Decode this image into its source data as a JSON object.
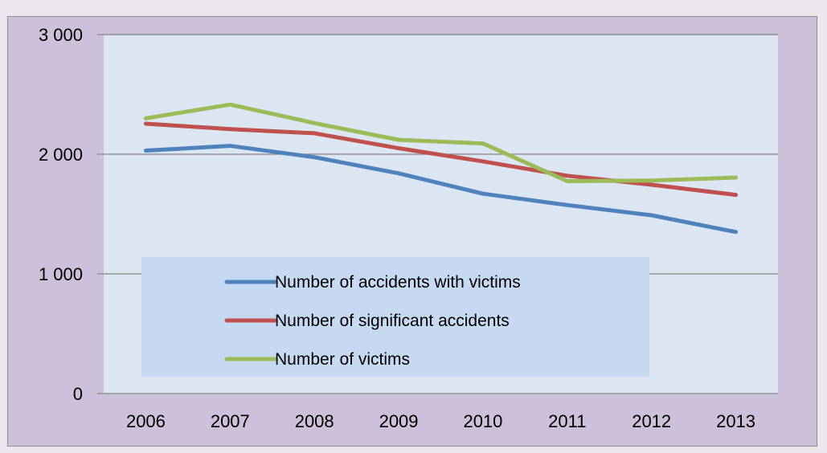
{
  "chart_data": {
    "type": "line",
    "title": "",
    "xlabel": "",
    "ylabel": "",
    "categories": [
      "2006",
      "2007",
      "2008",
      "2009",
      "2010",
      "2011",
      "2012",
      "2013"
    ],
    "ylim": [
      0,
      3000
    ],
    "yticks": [
      0,
      1000,
      2000,
      3000
    ],
    "ytick_labels": [
      "0",
      "1 000",
      "2 000",
      "3 000"
    ],
    "grid": true,
    "legend_position": "lower-center inside plot",
    "series": [
      {
        "name": "Number of accidents with victims",
        "color": "#4f81bd",
        "values": [
          2030,
          2070,
          1975,
          1840,
          1670,
          1575,
          1490,
          1350
        ]
      },
      {
        "name": "Number of significant accidents",
        "color": "#c0504d",
        "values": [
          2255,
          2210,
          2175,
          2050,
          1940,
          1820,
          1745,
          1660
        ]
      },
      {
        "name": "Number of victims",
        "color": "#9bbb59",
        "values": [
          2300,
          2415,
          2260,
          2120,
          2090,
          1775,
          1780,
          1805
        ]
      }
    ],
    "colors": {
      "page_background": "#ece6ef",
      "chart_background": "#ccc0da",
      "plot_background": "#dce6f2",
      "legend_background": "#c6d9f1",
      "gridline": "#868686"
    }
  }
}
